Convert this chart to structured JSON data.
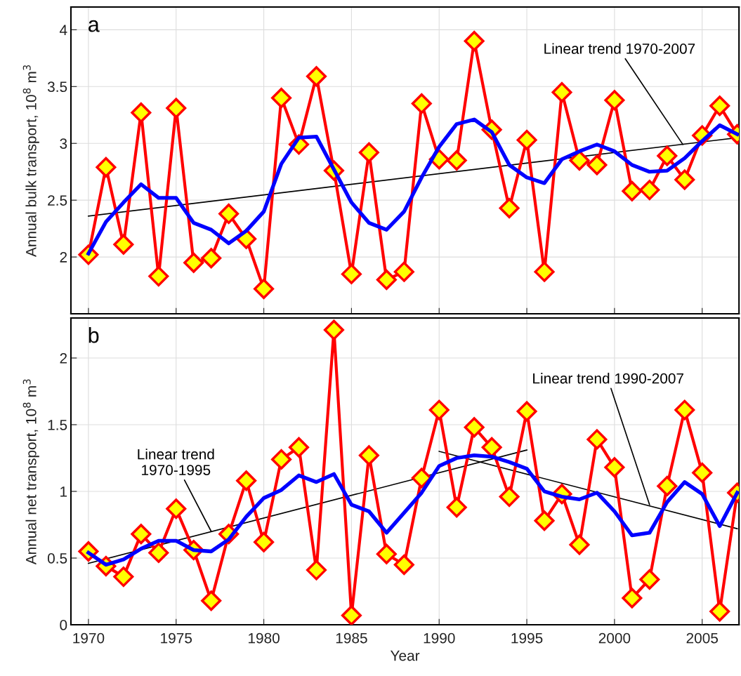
{
  "chart_data": [
    {
      "type": "line",
      "ylabel": "Annual bulk transport, 10$^{8}$ m$^{3}$",
      "x": [
        1970,
        1971,
        1972,
        1973,
        1974,
        1975,
        1976,
        1977,
        1978,
        1979,
        1980,
        1981,
        1982,
        1983,
        1984,
        1985,
        1986,
        1987,
        1988,
        1989,
        1990,
        1991,
        1992,
        1993,
        1994,
        1995,
        1996,
        1997,
        1998,
        1999,
        2000,
        2001,
        2002,
        2003,
        2004,
        2005,
        2006,
        2007
      ],
      "series": [
        {
          "color": "#ff0000",
          "marker": "diamond",
          "values": [
            2.02,
            2.79,
            2.11,
            3.27,
            1.83,
            3.31,
            1.95,
            1.99,
            2.38,
            2.16,
            1.72,
            3.4,
            2.99,
            3.59,
            2.76,
            1.85,
            2.92,
            1.8,
            1.87,
            3.35,
            2.86,
            2.85,
            3.9,
            3.12,
            2.43,
            3.03,
            1.87,
            3.45,
            2.85,
            2.81,
            3.38,
            2.58,
            2.59,
            2.89,
            2.68,
            3.07,
            3.33,
            3.08
          ]
        },
        {
          "color": "#0000ff",
          "values": [
            2.03,
            2.31,
            2.48,
            2.64,
            2.52,
            2.52,
            2.3,
            2.24,
            2.12,
            2.23,
            2.4,
            2.82,
            3.05,
            3.06,
            2.77,
            2.48,
            2.3,
            2.24,
            2.4,
            2.7,
            2.97,
            3.17,
            3.21,
            3.1,
            2.81,
            2.7,
            2.65,
            2.86,
            2.93,
            2.99,
            2.93,
            2.81,
            2.75,
            2.76,
            2.87,
            3.02,
            3.16,
            3.08
          ]
        },
        {
          "type": "line",
          "color": "#000000",
          "x": [
            1970,
            2007
          ],
          "values": [
            2.36,
            3.05
          ]
        }
      ],
      "annotations": [
        "a",
        {
          "text": "Linear trend 1970-2007",
          "x": 2003.9,
          "y": 2.99
        }
      ],
      "xlim": [
        1969,
        2007.1
      ],
      "xticks": [
        1970,
        1975,
        1980,
        1985,
        1990,
        1995,
        2000,
        2005
      ],
      "ylim": [
        1.5,
        4.2
      ],
      "yticks": [
        2,
        2.5,
        3,
        3.5,
        4
      ],
      "grid": true,
      "tick_labels": "y"
    },
    {
      "type": "line",
      "xlabel": "Year",
      "ylabel": "Annual net transport, 10$^{8}$ m$^{3}$",
      "x": [
        1970,
        1971,
        1972,
        1973,
        1974,
        1975,
        1976,
        1977,
        1978,
        1979,
        1980,
        1981,
        1982,
        1983,
        1984,
        1985,
        1986,
        1987,
        1988,
        1989,
        1990,
        1991,
        1992,
        1993,
        1994,
        1995,
        1996,
        1997,
        1998,
        1999,
        2000,
        2001,
        2002,
        2003,
        2004,
        2005,
        2006,
        2007
      ],
      "series": [
        {
          "color": "#ff0000",
          "marker": "diamond",
          "values": [
            0.55,
            0.44,
            0.36,
            0.68,
            0.54,
            0.87,
            0.56,
            0.18,
            0.68,
            1.08,
            0.62,
            1.24,
            1.33,
            0.41,
            2.21,
            0.07,
            1.27,
            0.53,
            0.45,
            1.1,
            1.61,
            0.88,
            1.48,
            1.33,
            0.96,
            1.6,
            0.78,
            0.98,
            0.6,
            1.39,
            1.18,
            0.2,
            0.34,
            1.04,
            1.61,
            1.14,
            0.1,
            0.99
          ]
        },
        {
          "color": "#0000ff",
          "values": [
            0.54,
            0.45,
            0.49,
            0.57,
            0.63,
            0.63,
            0.56,
            0.55,
            0.64,
            0.81,
            0.95,
            1.01,
            1.12,
            1.07,
            1.13,
            0.9,
            0.85,
            0.69,
            0.84,
            0.99,
            1.19,
            1.25,
            1.27,
            1.26,
            1.22,
            1.17,
            1.0,
            0.96,
            0.94,
            0.99,
            0.85,
            0.67,
            0.69,
            0.92,
            1.07,
            0.98,
            0.74,
            0.99
          ]
        },
        {
          "type": "line",
          "color": "#000000",
          "x": [
            1970,
            1995
          ],
          "values": [
            0.46,
            1.31
          ]
        },
        {
          "type": "line",
          "color": "#000000",
          "x": [
            1990,
            2007
          ],
          "values": [
            1.3,
            0.72
          ]
        }
      ],
      "annotations": [
        "b",
        {
          "text": "Linear trend\n1970-1995",
          "x": 1977,
          "y": 0.7
        },
        {
          "text": "Linear trend 1990-2007",
          "x": 2002,
          "y": 0.9
        }
      ],
      "xlim": [
        1969,
        2007.1
      ],
      "xticks": [
        1970,
        1975,
        1980,
        1985,
        1990,
        1995,
        2000,
        2005
      ],
      "ylim": [
        0,
        2.3
      ],
      "yticks": [
        0,
        0.5,
        1,
        1.5,
        2
      ],
      "grid": true
    }
  ]
}
